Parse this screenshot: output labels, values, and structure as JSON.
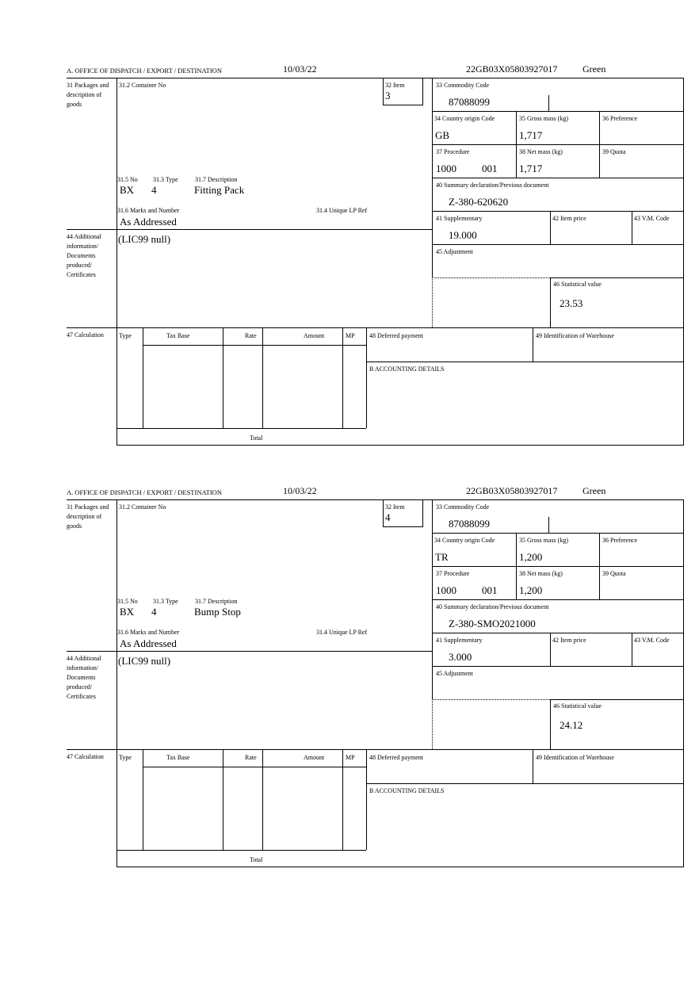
{
  "forms": [
    {
      "office_label": "A. OFFICE OF DISPATCH / EXPORT / DESTINATION",
      "date": "10/03/22",
      "reference": "22GB03X05803927017",
      "route": "Green",
      "labels": {
        "packages": "31 Packages and description of goods",
        "container": "31.2 Container No",
        "item": "32 Item",
        "no": "31.5 No",
        "type": "31.3 Type",
        "description": "31.7 Description",
        "marks": "31.6 Marks and Number",
        "unique_ref": "31.4 Unique LP Ref",
        "commodity": "33 Commodity Code",
        "country": "34 Country origin Code",
        "gross": "35 Gross mass (kg)",
        "preference": "36 Preference",
        "procedure": "37 Procedure",
        "net": "38 Net mass (kg)",
        "quota": "39 Quota",
        "summary": "40 Summary declaration/Previous document",
        "supplementary": "41 Supplementary",
        "item_price": "42 Item price",
        "vm_code": "43 V.M. Code",
        "additional": "44 Additional information/ Documents produced/ Certificates",
        "adjustment": "45 Adjustment",
        "statistical": "46 Statistical value",
        "calculation": "47 Calculation",
        "calc_type": "Type",
        "calc_tax_base": "Tax Base",
        "calc_rate": "Rate",
        "calc_amount": "Amount",
        "calc_mp": "MP",
        "total": "Total",
        "deferred": "48 Deferred payment",
        "warehouse": "49 Identification of Warehouse",
        "accounting": "B ACCOUNTING DETAILS"
      },
      "item": "3",
      "package_kind": "BX",
      "package_count": "4",
      "description": "Fitting Pack",
      "marks": "As Addressed",
      "commodity_code": "87088099",
      "country": "GB",
      "gross_mass": "1,717",
      "procedure": "1000",
      "procedure_extra": "001",
      "net_mass": "1,717",
      "summary_doc": "Z-380-620620",
      "supplementary": "19.000",
      "additional_info": "(LIC99 null)",
      "statistical_value": "23.53"
    },
    {
      "office_label": "A. OFFICE OF DISPATCH / EXPORT / DESTINATION",
      "date": "10/03/22",
      "reference": "22GB03X05803927017",
      "route": "Green",
      "labels": {
        "packages": "31 Packages and description of goods",
        "container": "31.2 Container No",
        "item": "32 Item",
        "no": "31.5 No",
        "type": "31.3 Type",
        "description": "31.7 Description",
        "marks": "31.6 Marks and Number",
        "unique_ref": "31.4 Unique LP Ref",
        "commodity": "33 Commodity Code",
        "country": "34 Country origin Code",
        "gross": "35 Gross mass (kg)",
        "preference": "36 Preference",
        "procedure": "37 Procedure",
        "net": "38 Net mass (kg)",
        "quota": "39 Quota",
        "summary": "40 Summary declaration/Previous document",
        "supplementary": "41 Supplementary",
        "item_price": "42 Item price",
        "vm_code": "43 V.M. Code",
        "additional": "44 Additional information/ Documents produced/ Certificates",
        "adjustment": "45 Adjustment",
        "statistical": "46 Statistical value",
        "calculation": "47 Calculation",
        "calc_type": "Type",
        "calc_tax_base": "Tax Base",
        "calc_rate": "Rate",
        "calc_amount": "Amount",
        "calc_mp": "MP",
        "total": "Total",
        "deferred": "48 Deferred payment",
        "warehouse": "49 Identification of Warehouse",
        "accounting": "B ACCOUNTING DETAILS"
      },
      "item": "4",
      "package_kind": "BX",
      "package_count": "4",
      "description": "Bump Stop",
      "marks": "As Addressed",
      "commodity_code": "87088099",
      "country": "TR",
      "gross_mass": "1,200",
      "procedure": "1000",
      "procedure_extra": "001",
      "net_mass": "1,200",
      "summary_doc": "Z-380-SMO2021000",
      "supplementary": "3.000",
      "additional_info": "(LIC99 null)",
      "statistical_value": "24.12"
    }
  ]
}
